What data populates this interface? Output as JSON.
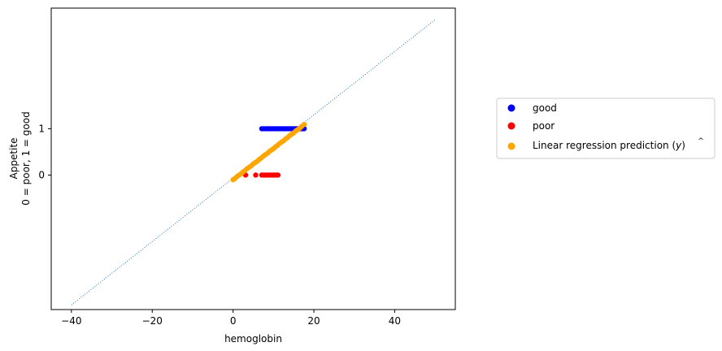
{
  "chart_data": {
    "type": "scatter",
    "xlabel": "hemoglobin",
    "ylabel_lines": [
      "Appetite",
      "0 = poor, 1 = good"
    ],
    "xlim": [
      -45,
      55
    ],
    "ylim": [
      -2.9,
      3.6
    ],
    "x_ticks": [
      -40,
      -20,
      0,
      20,
      40
    ],
    "x_tick_labels": [
      "−40",
      "−20",
      "0",
      "20",
      "40"
    ],
    "y_ticks": [
      0,
      1
    ],
    "y_tick_labels": [
      "0",
      "1"
    ],
    "reference_line": {
      "x": [
        -40,
        50
      ],
      "y": [
        -2.8,
        3.35
      ],
      "style": "dotted",
      "color": "#1f77b4"
    },
    "legend_position": "outside-right",
    "series": [
      {
        "name": "good",
        "color": "#0000ff",
        "points": [
          [
            7.1,
            1
          ],
          [
            7.5,
            1
          ],
          [
            8.0,
            1
          ],
          [
            8.4,
            1
          ],
          [
            8.8,
            1
          ],
          [
            9.2,
            1
          ],
          [
            9.6,
            1
          ],
          [
            10.0,
            1
          ],
          [
            10.4,
            1
          ],
          [
            10.8,
            1
          ],
          [
            11.2,
            1
          ],
          [
            11.6,
            1
          ],
          [
            12.0,
            1
          ],
          [
            12.4,
            1
          ],
          [
            12.8,
            1
          ],
          [
            13.2,
            1
          ],
          [
            13.6,
            1
          ],
          [
            14.0,
            1
          ],
          [
            14.4,
            1
          ],
          [
            14.8,
            1
          ],
          [
            15.2,
            1
          ],
          [
            15.6,
            1
          ],
          [
            16.0,
            1
          ],
          [
            16.4,
            1
          ],
          [
            16.8,
            1
          ],
          [
            17.2,
            1
          ],
          [
            17.6,
            1
          ]
        ]
      },
      {
        "name": "poor",
        "color": "#ff0000",
        "points": [
          [
            3.1,
            0
          ],
          [
            5.6,
            0
          ],
          [
            7.1,
            0
          ],
          [
            7.6,
            0
          ],
          [
            8.1,
            0
          ],
          [
            8.6,
            0
          ],
          [
            9.1,
            0
          ],
          [
            9.5,
            0
          ],
          [
            9.9,
            0
          ],
          [
            10.3,
            0
          ],
          [
            10.7,
            0
          ],
          [
            11.1,
            0
          ]
        ]
      },
      {
        "name": "Linear regression prediction ($\\hat{y}$)",
        "legend_label_parts": [
          "Linear regression prediction (",
          "y",
          ")"
        ],
        "color": "#ffa500",
        "points": [
          [
            0,
            -0.1
          ],
          [
            0.5,
            -0.07
          ],
          [
            1.0,
            -0.03
          ],
          [
            1.5,
            0.0
          ],
          [
            2.0,
            0.03
          ],
          [
            2.5,
            0.07
          ],
          [
            3.0,
            0.1
          ],
          [
            3.5,
            0.14
          ],
          [
            4.0,
            0.17
          ],
          [
            4.5,
            0.2
          ],
          [
            5.0,
            0.24
          ],
          [
            5.5,
            0.27
          ],
          [
            6.0,
            0.3
          ],
          [
            6.5,
            0.34
          ],
          [
            7.0,
            0.37
          ],
          [
            7.5,
            0.41
          ],
          [
            8.0,
            0.44
          ],
          [
            8.5,
            0.47
          ],
          [
            9.0,
            0.51
          ],
          [
            9.5,
            0.54
          ],
          [
            10.0,
            0.57
          ],
          [
            10.5,
            0.61
          ],
          [
            11.0,
            0.64
          ],
          [
            11.5,
            0.68
          ],
          [
            12.0,
            0.71
          ],
          [
            12.5,
            0.74
          ],
          [
            13.0,
            0.78
          ],
          [
            13.5,
            0.81
          ],
          [
            14.0,
            0.85
          ],
          [
            14.5,
            0.88
          ],
          [
            15.0,
            0.91
          ],
          [
            15.5,
            0.95
          ],
          [
            16.0,
            0.98
          ],
          [
            16.5,
            1.01
          ],
          [
            17.0,
            1.05
          ],
          [
            17.6,
            1.09
          ]
        ]
      }
    ]
  }
}
